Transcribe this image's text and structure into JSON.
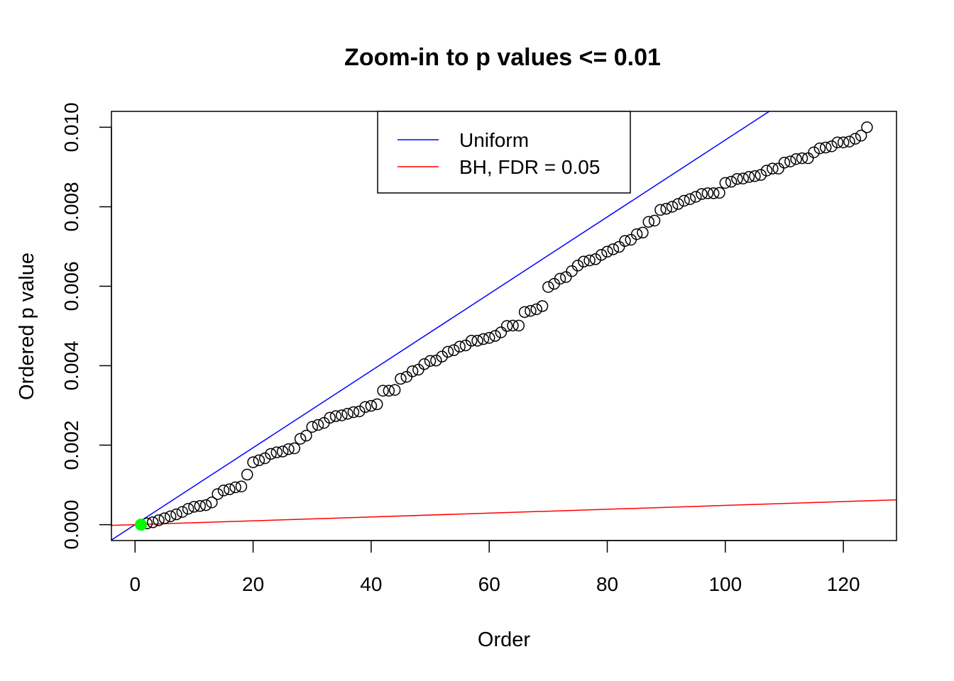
{
  "chart_data": {
    "type": "scatter",
    "title": "Zoom-in to p values <= 0.01",
    "xlabel": "Order",
    "ylabel": "Ordered p value",
    "xlim": [
      -4,
      129
    ],
    "ylim": [
      -0.0004,
      0.0104
    ],
    "x_ticks": [
      0,
      20,
      40,
      60,
      80,
      100,
      120
    ],
    "x_tick_labels": [
      "0",
      "20",
      "40",
      "60",
      "80",
      "100",
      "120"
    ],
    "y_ticks": [
      0,
      0.002,
      0.004,
      0.006,
      0.008,
      0.01
    ],
    "y_tick_labels": [
      "0.000",
      "0.002",
      "0.004",
      "0.006",
      "0.008",
      "0.010"
    ],
    "grid": false,
    "legend": {
      "position": "top-center",
      "entries": [
        {
          "label": "Uniform",
          "color": "#0000ff"
        },
        {
          "label": "BH, FDR = 0.05",
          "color": "#ff0000"
        }
      ]
    },
    "lines": [
      {
        "name": "Uniform",
        "color": "#0000ff",
        "slope": 9.68e-05,
        "intercept": 0
      },
      {
        "name": "BH, FDR = 0.05",
        "color": "#ff0000",
        "slope": 4.84e-06,
        "intercept": 0
      }
    ],
    "highlight_points": [
      {
        "x": 1,
        "y": 0.0,
        "color": "#00ff00"
      }
    ],
    "series": [
      {
        "marker": "open-circle",
        "color": "#000000",
        "x": [
          1,
          2,
          3,
          4,
          5,
          6,
          7,
          8,
          9,
          10,
          11,
          12,
          13,
          14,
          15,
          16,
          17,
          18,
          19,
          20,
          21,
          22,
          23,
          24,
          25,
          26,
          27,
          28,
          29,
          30,
          31,
          32,
          33,
          34,
          35,
          36,
          37,
          38,
          39,
          40,
          41,
          42,
          43,
          44,
          45,
          46,
          47,
          48,
          49,
          50,
          51,
          52,
          53,
          54,
          55,
          56,
          57,
          58,
          59,
          60,
          61,
          62,
          63,
          64,
          65,
          66,
          67,
          68,
          69,
          70,
          71,
          72,
          73,
          74,
          75,
          76,
          77,
          78,
          79,
          80,
          81,
          82,
          83,
          84,
          85,
          86,
          87,
          88,
          89,
          90,
          91,
          92,
          93,
          94,
          95,
          96,
          97,
          98,
          99,
          100,
          101,
          102,
          103,
          104,
          105,
          106,
          107,
          108,
          109,
          110,
          111,
          112,
          113,
          114,
          115,
          116,
          117,
          118,
          119,
          120,
          121,
          122,
          123,
          124
        ],
        "y": [
          0.0,
          3e-05,
          6e-05,
          0.00011,
          0.00016,
          0.00021,
          0.00026,
          0.00032,
          0.0004,
          0.00045,
          0.00047,
          0.00049,
          0.00056,
          0.00077,
          0.00086,
          0.00089,
          0.00094,
          0.00096,
          0.00126,
          0.00157,
          0.00162,
          0.00167,
          0.00178,
          0.00182,
          0.00184,
          0.0019,
          0.00192,
          0.00216,
          0.00224,
          0.00246,
          0.00251,
          0.00256,
          0.00269,
          0.00273,
          0.00275,
          0.00279,
          0.00283,
          0.00285,
          0.00296,
          0.00299,
          0.00303,
          0.00337,
          0.00337,
          0.00339,
          0.00367,
          0.00372,
          0.00386,
          0.0039,
          0.00404,
          0.00412,
          0.00413,
          0.00423,
          0.00435,
          0.00439,
          0.00448,
          0.00451,
          0.00463,
          0.00463,
          0.00467,
          0.0047,
          0.00475,
          0.00484,
          0.005,
          0.00501,
          0.00501,
          0.00535,
          0.00538,
          0.00542,
          0.0055,
          0.00598,
          0.00606,
          0.00619,
          0.00623,
          0.00638,
          0.00652,
          0.00662,
          0.00665,
          0.00668,
          0.00679,
          0.00687,
          0.00693,
          0.00699,
          0.00714,
          0.00717,
          0.00731,
          0.00735,
          0.00762,
          0.00765,
          0.00792,
          0.00795,
          0.008,
          0.00807,
          0.00815,
          0.00819,
          0.00825,
          0.00832,
          0.00834,
          0.00834,
          0.00835,
          0.0086,
          0.00863,
          0.0087,
          0.00871,
          0.00875,
          0.00877,
          0.0088,
          0.00891,
          0.00896,
          0.00896,
          0.00911,
          0.00914,
          0.0092,
          0.00922,
          0.00922,
          0.00937,
          0.00947,
          0.00949,
          0.00952,
          0.00962,
          0.00962,
          0.00964,
          0.00971,
          0.00979,
          0.01
        ]
      }
    ]
  }
}
